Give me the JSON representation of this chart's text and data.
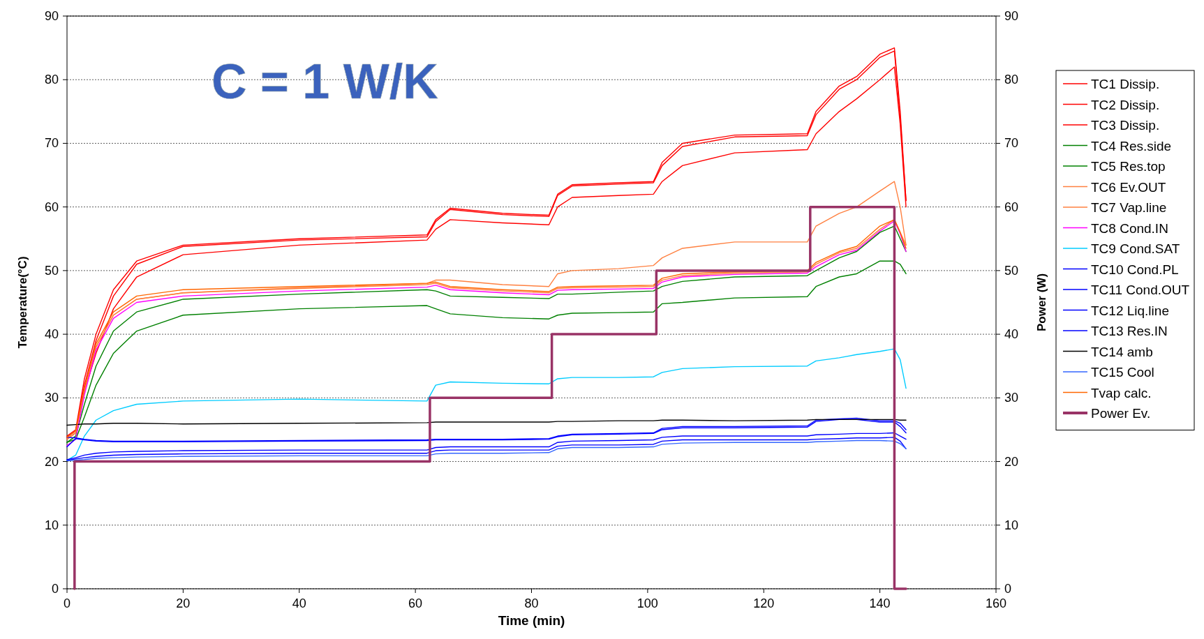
{
  "chart_data": {
    "type": "line",
    "annotations": [
      "C = 1 W/K"
    ],
    "xlabel": "Time (min)",
    "ylabel": "Temperature(°C)",
    "y2label": "Power (W)",
    "xlim": [
      0,
      160
    ],
    "xticks": [
      0,
      20,
      40,
      60,
      80,
      100,
      120,
      140,
      160
    ],
    "ylim": [
      0,
      90
    ],
    "yticks": [
      0,
      10,
      20,
      30,
      40,
      50,
      60,
      70,
      80,
      90
    ],
    "y2lim": [
      0,
      90
    ],
    "y2ticks": [
      0,
      10,
      20,
      30,
      40,
      50,
      60,
      70,
      80,
      90
    ],
    "grid": "y",
    "legend": "right",
    "line_style": "solid",
    "marker": "none",
    "x": [
      0,
      1.5,
      3,
      5,
      8,
      12,
      20,
      40,
      62,
      63.5,
      66,
      75,
      83,
      84.5,
      87,
      95,
      101,
      102.5,
      106,
      115,
      127.5,
      129,
      133,
      136,
      140,
      142.5,
      143.5,
      144.5
    ],
    "series": [
      {
        "name": "TC1 Dissip.",
        "color": "#ff0000",
        "values": [
          24,
          25,
          33,
          40,
          47,
          51.5,
          54,
          55,
          55.6,
          58,
          59.8,
          59,
          58.7,
          62,
          63.5,
          63.8,
          64,
          67,
          70,
          71.3,
          71.5,
          75,
          79,
          80.5,
          84,
          85,
          75,
          61
        ]
      },
      {
        "name": "TC2 Dissip.",
        "color": "#ff0000",
        "values": [
          23.8,
          24.8,
          32,
          39,
          46,
          51,
          53.8,
          54.8,
          55.3,
          57.7,
          59.6,
          58.8,
          58.5,
          61.8,
          63.3,
          63.6,
          63.8,
          66.5,
          69.5,
          71,
          71.2,
          74.5,
          78.5,
          80,
          83.5,
          84.5,
          74,
          61
        ]
      },
      {
        "name": "TC3 Dissip.",
        "color": "#ff0000",
        "values": [
          23.5,
          24.5,
          31,
          37,
          44,
          49,
          52.5,
          54,
          54.8,
          56.5,
          58,
          57.5,
          57.2,
          60,
          61.5,
          61.8,
          62,
          64,
          66.5,
          68.5,
          69,
          71.5,
          75,
          77,
          80,
          82,
          73,
          60
        ]
      },
      {
        "name": "TC4 Res.side",
        "color": "#008000",
        "values": [
          23,
          24,
          29,
          35,
          40.5,
          43.5,
          45.5,
          46.3,
          47,
          46.8,
          46,
          45.8,
          45.6,
          46.3,
          46.3,
          46.6,
          46.8,
          47.5,
          48.3,
          49,
          49.2,
          50,
          52,
          53,
          56,
          57,
          55,
          53
        ]
      },
      {
        "name": "TC5 Res.top",
        "color": "#008000",
        "values": [
          23,
          23.5,
          27,
          32,
          37,
          40.5,
          43,
          44,
          44.5,
          44,
          43.2,
          42.6,
          42.4,
          43,
          43.3,
          43.4,
          43.5,
          44.8,
          45,
          45.7,
          45.9,
          47.5,
          49,
          49.5,
          51.5,
          51.5,
          51,
          49.5
        ]
      },
      {
        "name": "TC6 Ev.OUT",
        "color": "#ff8040",
        "values": [
          23.5,
          24.5,
          31,
          38,
          43,
          45.5,
          46.5,
          47.2,
          47.8,
          48,
          47.3,
          46.8,
          46.5,
          47.2,
          47.3,
          47.4,
          47.5,
          48.5,
          49.2,
          49.6,
          49.8,
          51,
          52.8,
          53.5,
          56.5,
          58,
          56,
          54
        ]
      },
      {
        "name": "TC7 Vap.line",
        "color": "#ff8040",
        "values": [
          23.5,
          24.5,
          31,
          38,
          43,
          45.5,
          46.5,
          47.3,
          48,
          48.5,
          48.5,
          47.8,
          47.5,
          49.5,
          50,
          50.3,
          50.8,
          52,
          53.5,
          54.5,
          54.5,
          57,
          59,
          60,
          62.5,
          64,
          60,
          54
        ]
      },
      {
        "name": "TC8 Cond.IN",
        "color": "#ff00ff",
        "values": [
          22.5,
          23.5,
          30.5,
          37.5,
          42.5,
          45,
          46,
          46.8,
          47.4,
          47.7,
          47,
          46.5,
          46.2,
          46.9,
          47,
          47.1,
          47.2,
          48.2,
          49,
          49.4,
          49.6,
          50.6,
          52.5,
          53.2,
          56.2,
          57.8,
          55.8,
          53
        ]
      },
      {
        "name": "TC9 Cond.SAT",
        "color": "#00ccff",
        "values": [
          20.2,
          21,
          24,
          26.5,
          28,
          29,
          29.5,
          29.8,
          29.5,
          32,
          32.5,
          32.3,
          32.2,
          33,
          33.2,
          33.2,
          33.3,
          34,
          34.6,
          34.9,
          35,
          35.8,
          36.3,
          36.8,
          37.3,
          37.7,
          36,
          31.5
        ]
      },
      {
        "name": "TC10 Cond.PL",
        "color": "#0000ff",
        "values": [
          23.8,
          23.7,
          23.5,
          23.3,
          23.2,
          23.2,
          23.2,
          23.3,
          23.4,
          23.5,
          23.5,
          23.5,
          23.6,
          24,
          24.3,
          24.4,
          24.5,
          25.2,
          25.5,
          25.5,
          25.6,
          26.5,
          26.7,
          26.8,
          26.4,
          26.4,
          26,
          25
        ]
      },
      {
        "name": "TC11 Cond.OUT",
        "color": "#0000ff",
        "values": [
          22.3,
          23.6,
          23.4,
          23.2,
          23.1,
          23.1,
          23.1,
          23.2,
          23.3,
          23.4,
          23.4,
          23.4,
          23.5,
          23.9,
          24.2,
          24.3,
          24.4,
          25,
          25.3,
          25.3,
          25.4,
          26.3,
          26.6,
          26.6,
          26.2,
          26.2,
          25.5,
          24.5
        ]
      },
      {
        "name": "TC12 Liq.line",
        "color": "#0000ff",
        "values": [
          20.3,
          20.6,
          21,
          21.3,
          21.5,
          21.6,
          21.7,
          21.8,
          21.8,
          22.2,
          22.3,
          22.3,
          22.3,
          23,
          23.2,
          23.3,
          23.4,
          23.8,
          24,
          24,
          24,
          24.2,
          24.3,
          24.4,
          24.4,
          24.5,
          24,
          23.5
        ]
      },
      {
        "name": "TC13 Res.IN",
        "color": "#0000ff",
        "values": [
          20.2,
          20.4,
          20.6,
          20.8,
          21,
          21.1,
          21.2,
          21.3,
          21.3,
          21.7,
          21.8,
          21.8,
          21.8,
          22.4,
          22.6,
          22.6,
          22.7,
          23.2,
          23.4,
          23.4,
          23.4,
          23.5,
          23.6,
          23.7,
          23.7,
          23.8,
          23.2,
          22
        ]
      },
      {
        "name": "TC14 amb",
        "color": "#000000",
        "values": [
          25.7,
          25.8,
          25.9,
          25.9,
          26,
          26,
          25.9,
          26,
          26.1,
          26.2,
          26.2,
          26.2,
          26.2,
          26.3,
          26.3,
          26.4,
          26.4,
          26.5,
          26.5,
          26.4,
          26.5,
          26.6,
          26.6,
          26.6,
          26.6,
          26.6,
          26.5,
          26.5
        ]
      },
      {
        "name": "TC15 Cool",
        "color": "#3366ff",
        "values": [
          20.1,
          20.2,
          20.3,
          20.5,
          20.6,
          20.7,
          20.8,
          20.9,
          20.9,
          21.2,
          21.3,
          21.3,
          21.4,
          22,
          22.2,
          22.2,
          22.3,
          22.7,
          22.9,
          23,
          23,
          23.1,
          23.2,
          23.3,
          23.3,
          23.2,
          22.8,
          22
        ]
      },
      {
        "name": "Tvap calc.",
        "color": "#ff6600",
        "values": [
          23.8,
          24.8,
          31.5,
          38.5,
          43.5,
          46,
          47,
          47.5,
          48,
          48.2,
          47.5,
          47,
          46.7,
          47.4,
          47.5,
          47.6,
          47.7,
          48.8,
          49.5,
          49.8,
          50,
          51.3,
          53,
          53.8,
          57,
          58,
          56,
          53.5
        ]
      },
      {
        "name": "Power Ev.",
        "color": "#993366",
        "axis": "y2",
        "x": [
          1.3,
          1.3,
          62.5,
          62.5,
          83.5,
          83.5,
          101.5,
          101.5,
          128,
          128,
          142.5,
          142.5,
          144.5
        ],
        "values": [
          0,
          20,
          20,
          30,
          30,
          40,
          40,
          50,
          50,
          60,
          60,
          0,
          0
        ]
      }
    ]
  }
}
